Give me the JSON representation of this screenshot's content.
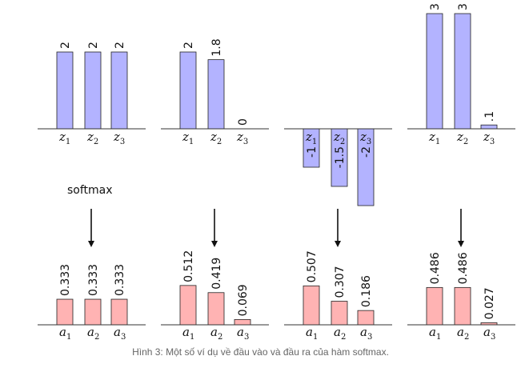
{
  "colors": {
    "input_fill": "#b3b3ff",
    "output_fill": "#ffb3b3",
    "stroke": "#222222"
  },
  "softmax_label": "softmax",
  "caption": "Hình 3: Một số ví dụ về đầu vào và đầu ra của hàm softmax.",
  "chart_data": [
    {
      "type": "bar",
      "role": "input",
      "example": 1,
      "categories": [
        "z1",
        "z2",
        "z3"
      ],
      "values": [
        2,
        2,
        2
      ],
      "labels": [
        "2",
        "2",
        "2"
      ]
    },
    {
      "type": "bar",
      "role": "input",
      "example": 2,
      "categories": [
        "z1",
        "z2",
        "z3"
      ],
      "values": [
        2,
        1.8,
        0
      ],
      "labels": [
        "2",
        "1.8",
        "0"
      ]
    },
    {
      "type": "bar",
      "role": "input",
      "example": 3,
      "categories": [
        "z1",
        "z2",
        "z3"
      ],
      "values": [
        -1,
        -1.5,
        -2
      ],
      "labels": [
        "-1",
        "-1.5",
        "-2"
      ]
    },
    {
      "type": "bar",
      "role": "input",
      "example": 4,
      "categories": [
        "z1",
        "z2",
        "z3"
      ],
      "values": [
        3,
        3,
        0.1
      ],
      "labels": [
        "3",
        "3",
        ".1"
      ]
    },
    {
      "type": "bar",
      "role": "output",
      "example": 1,
      "categories": [
        "a1",
        "a2",
        "a3"
      ],
      "values": [
        0.333,
        0.333,
        0.333
      ],
      "labels": [
        "0.333",
        "0.333",
        "0.333"
      ]
    },
    {
      "type": "bar",
      "role": "output",
      "example": 2,
      "categories": [
        "a1",
        "a2",
        "a3"
      ],
      "values": [
        0.512,
        0.419,
        0.069
      ],
      "labels": [
        "0.512",
        "0.419",
        "0.069"
      ]
    },
    {
      "type": "bar",
      "role": "output",
      "example": 3,
      "categories": [
        "a1",
        "a2",
        "a3"
      ],
      "values": [
        0.507,
        0.307,
        0.186
      ],
      "labels": [
        "0.507",
        "0.307",
        "0.186"
      ]
    },
    {
      "type": "bar",
      "role": "output",
      "example": 4,
      "categories": [
        "a1",
        "a2",
        "a3"
      ],
      "values": [
        0.486,
        0.486,
        0.027
      ],
      "labels": [
        "0.486",
        "0.486",
        "0.027"
      ]
    }
  ]
}
